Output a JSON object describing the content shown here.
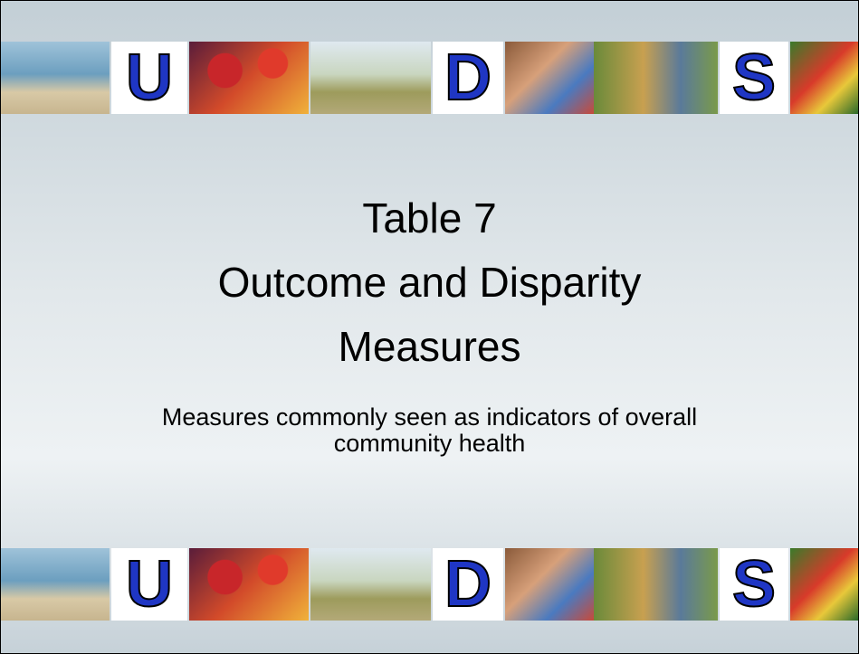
{
  "slide": {
    "title_lines": [
      "Table 7",
      "Outcome and Disparity",
      "Measures"
    ],
    "subtitle_lines": [
      "Measures commonly seen as indicators of overall",
      "community health"
    ],
    "top_banner": {
      "letters": [
        "U",
        "D",
        "S"
      ]
    },
    "bottom_banner": {
      "letters": [
        "U",
        "D",
        "S"
      ]
    }
  }
}
